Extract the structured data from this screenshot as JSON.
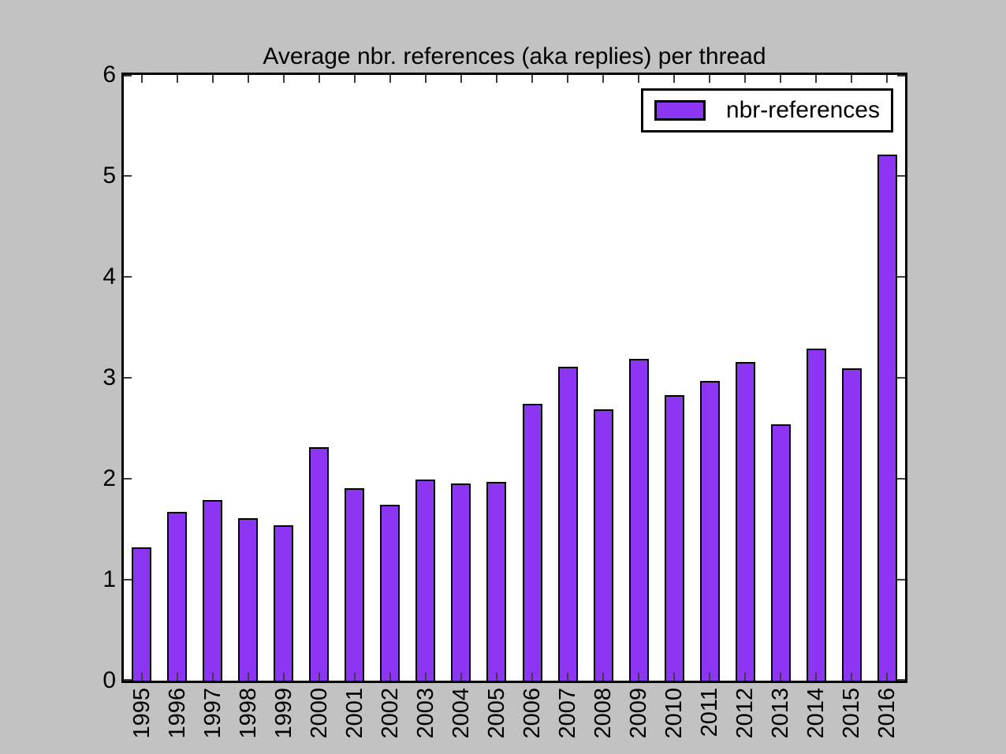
{
  "chart_data": {
    "type": "bar",
    "title": "Average nbr. references (aka replies) per thread",
    "categories": [
      "1995",
      "1996",
      "1997",
      "1998",
      "1999",
      "2000",
      "2001",
      "2002",
      "2003",
      "2004",
      "2005",
      "2006",
      "2007",
      "2008",
      "2009",
      "2010",
      "2011",
      "2012",
      "2013",
      "2014",
      "2015",
      "2016"
    ],
    "series": [
      {
        "name": "nbr-references",
        "values": [
          1.32,
          1.67,
          1.79,
          1.61,
          1.54,
          2.31,
          1.91,
          1.74,
          1.99,
          1.95,
          1.97,
          2.74,
          3.11,
          2.69,
          3.19,
          2.83,
          2.97,
          3.16,
          2.54,
          3.29,
          3.09,
          5.21
        ]
      }
    ],
    "xlabel": "",
    "ylabel": "",
    "ylim": [
      0,
      6
    ],
    "yticks": [
      0,
      1,
      2,
      3,
      4,
      5,
      6
    ],
    "grid": false,
    "legend_position": "upper right",
    "x_tick_rotation": "vertical",
    "colors": {
      "bar_fill": "#8c36f4",
      "bar_edge": "#000000",
      "figure_background": "#c2c2c2",
      "axes_background": "#ffffff",
      "axis_edge": "#000000",
      "tick": "#3c3c3c",
      "text": "#000000"
    }
  }
}
